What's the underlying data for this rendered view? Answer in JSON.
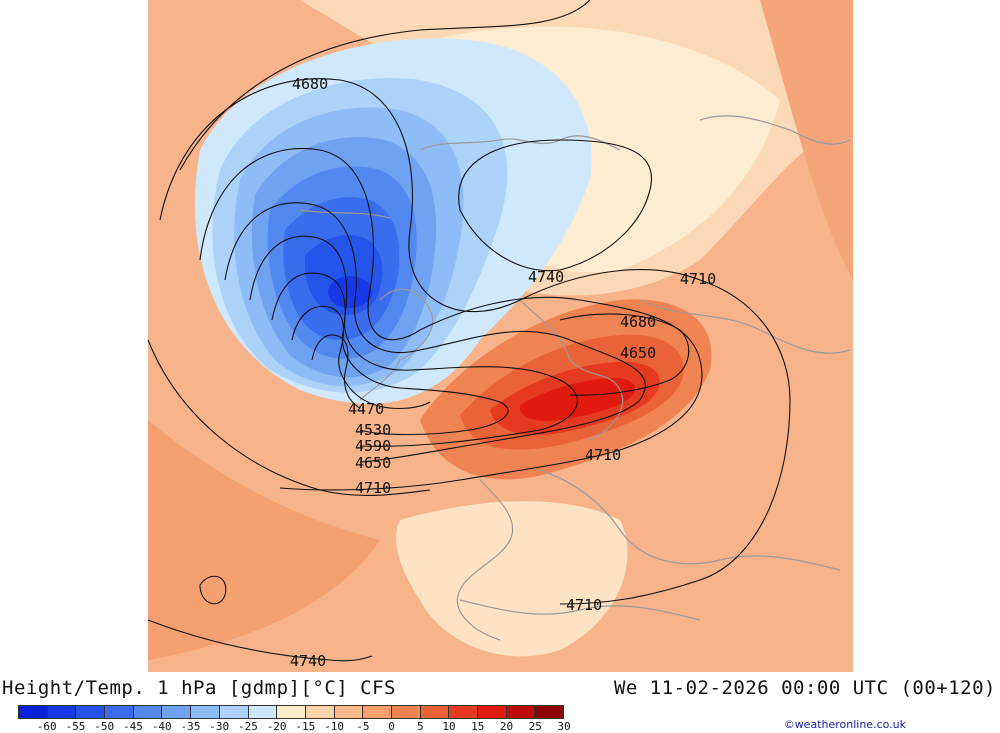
{
  "footer": {
    "title": "Height/Temp. 1 hPa [gdmp][°C] CFS",
    "datetime": "We 11-02-2026 00:00 UTC (00+120)",
    "credit": "©weatheronline.co.uk"
  },
  "legend": {
    "ticks": [
      "-60",
      "-55",
      "-50",
      "-45",
      "-40",
      "-35",
      "-30",
      "-25",
      "-20",
      "-15",
      "-10",
      "-5",
      "0",
      "5",
      "10",
      "15",
      "20",
      "25",
      "30"
    ],
    "colors": [
      "#0a1fd8",
      "#1638e6",
      "#2454ea",
      "#3a6cee",
      "#5288f0",
      "#70a2f2",
      "#8ebcf6",
      "#acd2fa",
      "#cce6fc",
      "#fdecc8",
      "#fcd3a8",
      "#fab98a",
      "#f59e6c",
      "#f08352",
      "#ea6238",
      "#e63a20",
      "#e11a10",
      "#c00c08",
      "#8c0402"
    ]
  },
  "map": {
    "contour_labels": [
      "4680",
      "4740",
      "4710",
      "4680",
      "4650",
      "4470",
      "4530",
      "4590",
      "4650",
      "4710",
      "4710",
      "4710",
      "4740"
    ]
  }
}
